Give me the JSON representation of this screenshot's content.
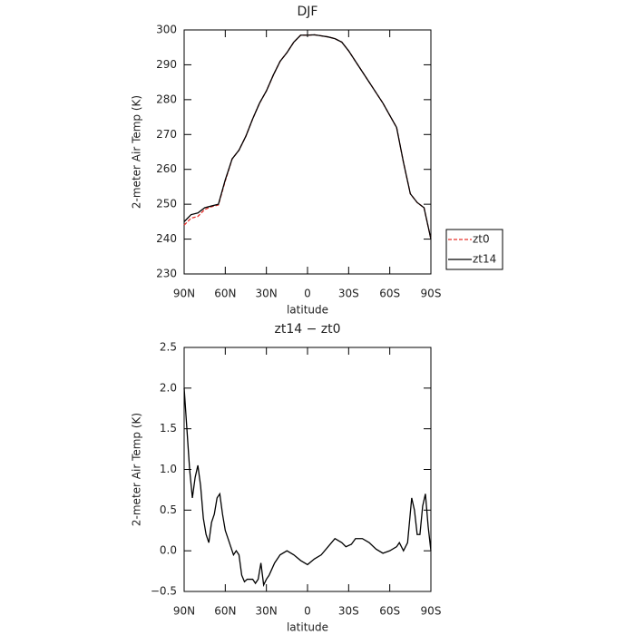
{
  "chart_data": [
    {
      "type": "line",
      "title": "DJF",
      "x_label": "latitude",
      "y_label": "2-meter Air Temp (K)",
      "x": [
        90,
        85,
        80,
        75,
        70,
        65,
        60,
        55,
        50,
        45,
        40,
        35,
        30,
        25,
        20,
        15,
        10,
        5,
        0,
        -5,
        -10,
        -15,
        -20,
        -25,
        -30,
        -35,
        -40,
        -45,
        -50,
        -55,
        -60,
        -65,
        -70,
        -75,
        -80,
        -85,
        -90
      ],
      "series": [
        {
          "name": "zt0",
          "color": "#e8302a",
          "dashed": true,
          "values": [
            244,
            246,
            246.5,
            248.5,
            249.3,
            249.8,
            256.7,
            263,
            265.5,
            269.5,
            274.5,
            279,
            282.5,
            287,
            291,
            293.5,
            296.5,
            298.5,
            298.5,
            298.6,
            298.3,
            298,
            297.5,
            296.5,
            294,
            291,
            288,
            285,
            282,
            279,
            275.5,
            272,
            262,
            253,
            250.5,
            249,
            240
          ]
        },
        {
          "name": "zt14",
          "color": "#000000",
          "dashed": false,
          "values": [
            245,
            247,
            247.5,
            249,
            249.5,
            250,
            257,
            263,
            265.5,
            269.5,
            274.5,
            279,
            282.5,
            287,
            291,
            293.5,
            296.5,
            298.5,
            298.5,
            298.6,
            298.3,
            298,
            297.5,
            296.5,
            294,
            291,
            288,
            285,
            282,
            279,
            275.5,
            272,
            262,
            253,
            250.5,
            249,
            240
          ]
        }
      ],
      "xlim": [
        90,
        -90
      ],
      "xticks": [
        {
          "value": 90,
          "label": "90N"
        },
        {
          "value": 60,
          "label": "60N"
        },
        {
          "value": 30,
          "label": "30N"
        },
        0,
        {
          "value": -30,
          "label": "30S"
        },
        {
          "value": -60,
          "label": "60S"
        },
        {
          "value": -90,
          "label": "90S"
        }
      ],
      "ylim": [
        230,
        300
      ],
      "yticks": [
        230,
        240,
        250,
        260,
        270,
        280,
        290,
        300
      ],
      "legend": "right"
    },
    {
      "type": "line",
      "title": "zt14 − zt0",
      "x_label": "latitude",
      "y_label": "2-meter Air Temp (K)",
      "x": [
        90,
        88,
        86,
        84,
        82,
        80,
        78,
        76,
        74,
        72,
        70,
        68,
        66,
        64,
        62,
        60,
        58,
        56,
        54,
        52,
        50,
        48,
        46,
        44,
        42,
        40,
        38,
        36,
        34,
        32,
        30,
        28,
        24,
        20,
        15,
        10,
        5,
        0,
        -5,
        -10,
        -15,
        -20,
        -25,
        -28,
        -32,
        -35,
        -40,
        -45,
        -50,
        -55,
        -60,
        -65,
        -67,
        -70,
        -73,
        -76,
        -78,
        -80,
        -82,
        -84,
        -86,
        -88,
        -90
      ],
      "series": [
        {
          "name": "zt14 − zt0",
          "color": "#000000",
          "dashed": false,
          "values": [
            2.0,
            1.5,
            1.0,
            0.65,
            0.9,
            1.05,
            0.8,
            0.4,
            0.2,
            0.1,
            0.35,
            0.45,
            0.65,
            0.7,
            0.45,
            0.25,
            0.15,
            0.05,
            -0.05,
            0.0,
            -0.05,
            -0.3,
            -0.38,
            -0.35,
            -0.35,
            -0.35,
            -0.4,
            -0.35,
            -0.15,
            -0.42,
            -0.35,
            -0.3,
            -0.15,
            -0.05,
            0.0,
            -0.05,
            -0.12,
            -0.17,
            -0.1,
            -0.05,
            0.05,
            0.15,
            0.1,
            0.05,
            0.08,
            0.15,
            0.15,
            0.1,
            0.02,
            -0.03,
            0.0,
            0.05,
            0.1,
            0.0,
            0.1,
            0.65,
            0.5,
            0.2,
            0.2,
            0.55,
            0.7,
            0.3,
            0.0
          ]
        }
      ],
      "xlim": [
        90,
        -90
      ],
      "xticks": [
        {
          "value": 90,
          "label": "90N"
        },
        {
          "value": 60,
          "label": "60N"
        },
        {
          "value": 30,
          "label": "30N"
        },
        0,
        {
          "value": -30,
          "label": "30S"
        },
        {
          "value": -60,
          "label": "60S"
        },
        {
          "value": -90,
          "label": "90S"
        }
      ],
      "ylim": [
        -0.5,
        2.5
      ],
      "yticks": [
        {
          "value": -0.5,
          "label": "−0.5"
        },
        {
          "value": 0,
          "label": "0.0"
        },
        {
          "value": 0.5,
          "label": "0.5"
        },
        {
          "value": 1,
          "label": "1.0"
        },
        {
          "value": 1.5,
          "label": "1.5"
        },
        {
          "value": 2,
          "label": "2.0"
        },
        {
          "value": 2.5,
          "label": "2.5"
        }
      ],
      "legend": null
    }
  ]
}
